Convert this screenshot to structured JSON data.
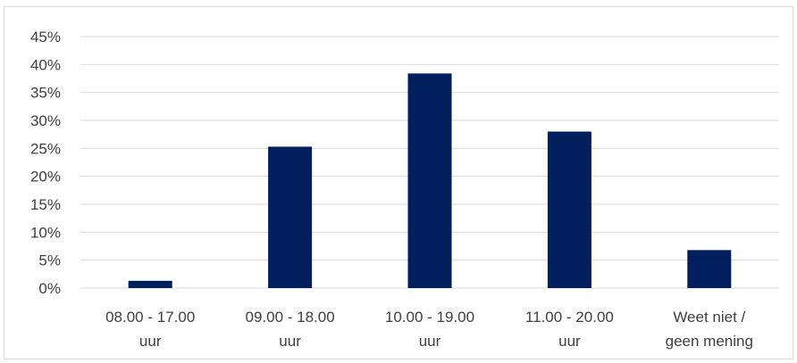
{
  "chart_data": {
    "type": "bar",
    "title": "",
    "xlabel": "",
    "ylabel": "",
    "categories": [
      [
        "08.00 - 17.00",
        "uur"
      ],
      [
        "09.00 - 18.00",
        "uur"
      ],
      [
        "10.00 - 19.00",
        "uur"
      ],
      [
        "11.00 - 20.00",
        "uur"
      ],
      [
        "Weet niet /",
        "geen mening"
      ]
    ],
    "values": [
      1.3,
      25.3,
      38.4,
      28.0,
      6.8
    ],
    "ylim": [
      0,
      45
    ],
    "yticks": [
      0,
      5,
      10,
      15,
      20,
      25,
      30,
      35,
      40,
      45
    ],
    "ytick_labels": [
      "0%",
      "5%",
      "10%",
      "15%",
      "20%",
      "25%",
      "30%",
      "35%",
      "40%",
      "45%"
    ],
    "grid": true,
    "legend": "none",
    "colors": {
      "bar": "#001f5c",
      "grid": "#d9d9d9",
      "text": "#404040"
    }
  }
}
